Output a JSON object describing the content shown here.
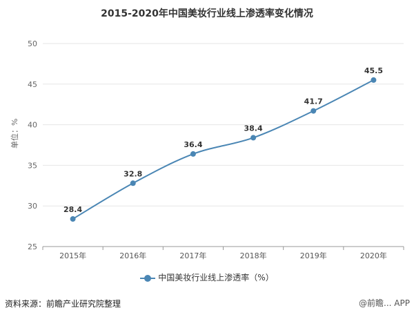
{
  "chart_data": {
    "type": "line",
    "title": "2015-2020年中国美妆行业线上渗透率变化情况",
    "ylabel": "单位：%",
    "xlabel": "",
    "categories": [
      "2015年",
      "2016年",
      "2017年",
      "2018年",
      "2019年",
      "2020年"
    ],
    "series": [
      {
        "name": "中国美妆行业线上渗透率（%）",
        "values": [
          28.4,
          32.8,
          36.4,
          38.4,
          41.7,
          45.5
        ],
        "color": "#4a86b4"
      }
    ],
    "ylim": [
      25,
      50
    ],
    "yticks": [
      25,
      30,
      35,
      40,
      45,
      50
    ],
    "grid": true,
    "legend": "bottom-center"
  },
  "footer": {
    "source": "资料来源：前瞻产业研究院整理",
    "brand": "@前瞻... APP"
  }
}
